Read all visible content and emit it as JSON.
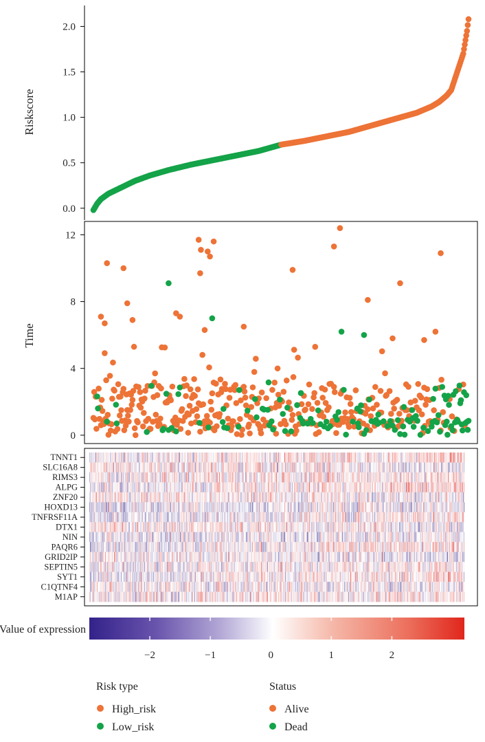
{
  "chart_data": [
    {
      "type": "scatter",
      "name": "riskscore-curve",
      "ylabel": "Riskscore",
      "ylim": [
        -0.1,
        2.2
      ],
      "yticks": [
        "0.0",
        "0.5",
        "1.0",
        "1.5",
        "2.0"
      ],
      "ytick_values": [
        0,
        0.5,
        1.0,
        1.5,
        2.0
      ],
      "n_samples": 500,
      "split_index": 250,
      "anchors": [
        [
          0,
          -0.02
        ],
        [
          5,
          0.05
        ],
        [
          10,
          0.1
        ],
        [
          20,
          0.16
        ],
        [
          35,
          0.22
        ],
        [
          55,
          0.3
        ],
        [
          75,
          0.36
        ],
        [
          100,
          0.42
        ],
        [
          130,
          0.48
        ],
        [
          160,
          0.53
        ],
        [
          190,
          0.58
        ],
        [
          220,
          0.63
        ],
        [
          250,
          0.7
        ],
        [
          280,
          0.74
        ],
        [
          310,
          0.79
        ],
        [
          340,
          0.84
        ],
        [
          370,
          0.91
        ],
        [
          400,
          0.98
        ],
        [
          430,
          1.05
        ],
        [
          450,
          1.12
        ],
        [
          460,
          1.17
        ],
        [
          470,
          1.24
        ],
        [
          476,
          1.3
        ],
        [
          482,
          1.45
        ],
        [
          488,
          1.6
        ],
        [
          492,
          1.7
        ],
        [
          495,
          1.85
        ],
        [
          497,
          1.95
        ],
        [
          499,
          2.08
        ]
      ],
      "series": [
        {
          "name": "High_risk",
          "color": "#ED7337"
        },
        {
          "name": "Low_risk",
          "color": "#14A348"
        }
      ]
    },
    {
      "type": "scatter",
      "name": "survival-time",
      "ylabel": "Time",
      "ylim": [
        -0.5,
        12.8
      ],
      "yticks": [
        "0",
        "4",
        "8",
        "12"
      ],
      "ytick_values": [
        0,
        4,
        8,
        12
      ],
      "points_highlight": [
        {
          "i": 10,
          "t": 7.1,
          "s": "Alive"
        },
        {
          "i": 15,
          "t": 6.7,
          "s": "Alive"
        },
        {
          "i": 18,
          "t": 10.3,
          "s": "Alive"
        },
        {
          "i": 40,
          "t": 10.0,
          "s": "Alive"
        },
        {
          "i": 45,
          "t": 7.9,
          "s": "Alive"
        },
        {
          "i": 52,
          "t": 6.9,
          "s": "Alive"
        },
        {
          "i": 100,
          "t": 9.1,
          "s": "Dead"
        },
        {
          "i": 110,
          "t": 7.3,
          "s": "Alive"
        },
        {
          "i": 115,
          "t": 7.1,
          "s": "Alive"
        },
        {
          "i": 140,
          "t": 11.7,
          "s": "Alive"
        },
        {
          "i": 142,
          "t": 9.7,
          "s": "Alive"
        },
        {
          "i": 143,
          "t": 11.1,
          "s": "Alive"
        },
        {
          "i": 152,
          "t": 11.0,
          "s": "Alive"
        },
        {
          "i": 155,
          "t": 10.7,
          "s": "Alive"
        },
        {
          "i": 160,
          "t": 11.6,
          "s": "Alive"
        },
        {
          "i": 158,
          "t": 7.0,
          "s": "Dead"
        },
        {
          "i": 148,
          "t": 6.3,
          "s": "Alive"
        },
        {
          "i": 200,
          "t": 6.5,
          "s": "Alive"
        },
        {
          "i": 265,
          "t": 9.9,
          "s": "Alive"
        },
        {
          "i": 320,
          "t": 11.3,
          "s": "Alive"
        },
        {
          "i": 328,
          "t": 12.4,
          "s": "Alive"
        },
        {
          "i": 330,
          "t": 6.2,
          "s": "Dead"
        },
        {
          "i": 360,
          "t": 6.0,
          "s": "Dead"
        },
        {
          "i": 365,
          "t": 8.1,
          "s": "Alive"
        },
        {
          "i": 408,
          "t": 9.1,
          "s": "Alive"
        },
        {
          "i": 398,
          "t": 5.8,
          "s": "Alive"
        },
        {
          "i": 440,
          "t": 5.7,
          "s": "Alive"
        },
        {
          "i": 455,
          "t": 6.2,
          "s": "Alive"
        },
        {
          "i": 462,
          "t": 10.9,
          "s": "Alive"
        }
      ],
      "seed": 1234
    },
    {
      "type": "heatmap",
      "name": "expression-heatmap",
      "rows": [
        "TNNT1",
        "SLC16A8",
        "RIMS3",
        "ALPG",
        "ZNF20",
        "HOXD13",
        "TNFRSF11A",
        "DTX1",
        "NIN",
        "PAQR6",
        "GRID2IP",
        "SEPTIN5",
        "SYT1",
        "C1QTNF4",
        "M1AP"
      ],
      "n_columns": 500,
      "seed": 77
    },
    {
      "type": "colorbar",
      "name": "expression-scale",
      "title": "Value of expression",
      "range": [
        -3,
        3.2
      ],
      "ticks": [
        "−2",
        "−1",
        "0",
        "1",
        "2"
      ],
      "tick_values": [
        -2,
        -1,
        0,
        1,
        2
      ],
      "colors": [
        "#3B2C8C",
        "#ffffff",
        "#E0261C"
      ]
    }
  ],
  "legend": {
    "risk_title": "Risk type",
    "risk_items": [
      {
        "label": "High_risk",
        "color": "#ED7337"
      },
      {
        "label": "Low_risk",
        "color": "#14A348"
      }
    ],
    "status_title": "Status",
    "status_items": [
      {
        "label": "Alive",
        "color": "#ED7337"
      },
      {
        "label": "Dead",
        "color": "#14A348"
      }
    ]
  }
}
